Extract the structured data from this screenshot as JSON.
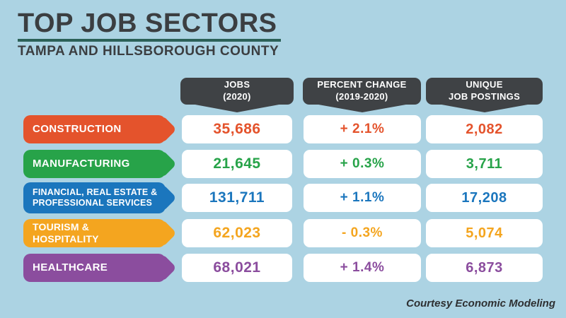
{
  "colors": {
    "background": "#ACD3E3",
    "banner": "#3F4245",
    "title_text": "#3B3E41",
    "underline": "#2B6158",
    "footer_text": "#2E3032",
    "row_construction": "#E4532C",
    "row_manufacturing": "#27A349",
    "row_financial": "#1B76BD",
    "row_tourism": "#F4A51F",
    "row_healthcare": "#8B4D9E"
  },
  "header": {
    "title": "TOP JOB SECTORS",
    "subtitle": "TAMPA AND HILLSBOROUGH COUNTY"
  },
  "table": {
    "columns": [
      {
        "line1": "JOBS",
        "line2": "(2020)"
      },
      {
        "line1": "PERCENT CHANGE",
        "line2": "(2019-2020)"
      },
      {
        "line1": "UNIQUE",
        "line2": "JOB POSTINGS"
      }
    ],
    "rows": [
      {
        "sector_lines": [
          "CONSTRUCTION"
        ],
        "color": "#E4532C",
        "jobs": "35,686",
        "percent_change": "+ 2.1%",
        "unique_postings": "2,082"
      },
      {
        "sector_lines": [
          "MANUFACTURING"
        ],
        "color": "#27A349",
        "jobs": "21,645",
        "percent_change": "+ 0.3%",
        "unique_postings": "3,711"
      },
      {
        "sector_lines": [
          "FINANCIAL, REAL ESTATE &",
          "PROFESSIONAL SERVICES"
        ],
        "color": "#1B76BD",
        "jobs": "131,711",
        "percent_change": "+ 1.1%",
        "unique_postings": "17,208"
      },
      {
        "sector_lines": [
          "TOURISM &",
          "HOSPITALITY"
        ],
        "color": "#F4A51F",
        "jobs": "62,023",
        "percent_change": "- 0.3%",
        "unique_postings": "5,074"
      },
      {
        "sector_lines": [
          "HEALTHCARE"
        ],
        "color": "#8B4D9E",
        "jobs": "68,021",
        "percent_change": "+ 1.4%",
        "unique_postings": "6,873"
      }
    ]
  },
  "footer": {
    "credit": "Courtesy Economic Modeling"
  },
  "chart_data": {
    "type": "table",
    "title": "TOP JOB SECTORS",
    "subtitle": "TAMPA AND HILLSBOROUGH COUNTY",
    "columns": [
      "Sector",
      "Jobs (2020)",
      "Percent Change (2019-2020)",
      "Unique Job Postings"
    ],
    "rows": [
      [
        "Construction",
        35686,
        2.1,
        2082
      ],
      [
        "Manufacturing",
        21645,
        0.3,
        3711
      ],
      [
        "Financial, Real Estate & Professional Services",
        131711,
        1.1,
        17208
      ],
      [
        "Tourism & Hospitality",
        62023,
        -0.3,
        5074
      ],
      [
        "Healthcare",
        68021,
        1.4,
        6873
      ]
    ],
    "source_note": "Courtesy Economic Modeling",
    "legend_position": "none",
    "grid": false
  }
}
